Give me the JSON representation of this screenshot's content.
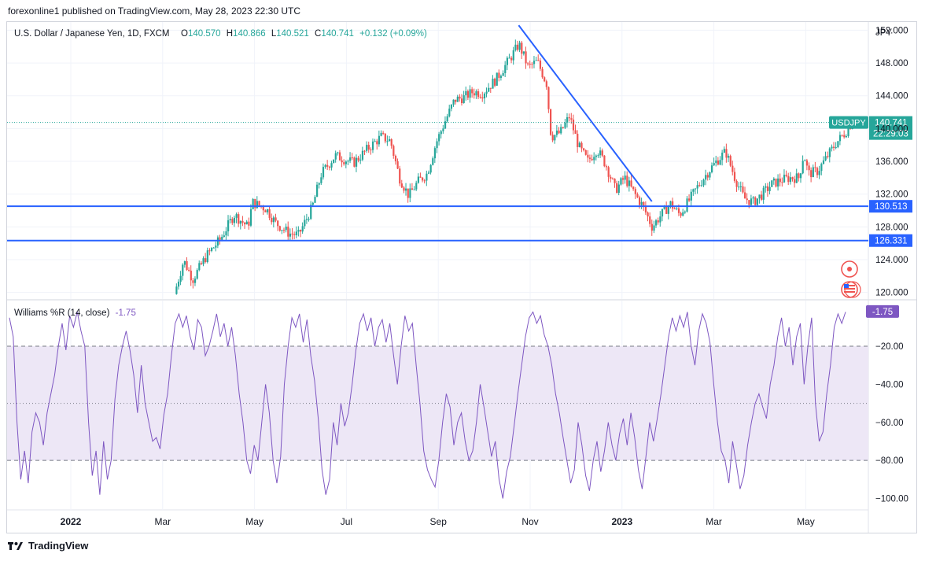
{
  "header": {
    "publisher": "forexonline1 published on TradingView.com, May 28, 2023 22:30 UTC"
  },
  "legend": {
    "symbol_name": "U.S. Dollar / Japanese Yen, 1D, FXCM",
    "o_label": "O",
    "o_value": "140.570",
    "h_label": "H",
    "h_value": "140.866",
    "l_label": "L",
    "l_value": "140.521",
    "c_label": "C",
    "c_value": "140.741",
    "change": "+0.132 (+0.09%)"
  },
  "indicator": {
    "name": "Williams %R (14, close)",
    "value": "-1.75"
  },
  "footer": {
    "brand": "TradingView"
  },
  "colors": {
    "up": "#26a69a",
    "down": "#ef5350",
    "line": "#2962ff",
    "wr": "#7e57c2",
    "wr_band": "#ede7f6"
  },
  "chart_data": [
    {
      "type": "candlestick",
      "title": "U.S. Dollar / Japanese Yen, 1D, FXCM",
      "currency": "JPY",
      "ylim": [
        119.2,
        153.0
      ],
      "yticks": [
        120.0,
        124.0,
        128.0,
        132.0,
        136.0,
        140.0,
        144.0,
        148.0,
        152.0
      ],
      "ytick_labels": [
        "120.000",
        "124.000",
        "128.000",
        "132.000",
        "136.000",
        "140.000",
        "144.000",
        "148.000",
        "152.000"
      ],
      "xticks": [
        {
          "month": 0,
          "label": "2022",
          "bold": true
        },
        {
          "month": 2,
          "label": "Mar",
          "bold": false
        },
        {
          "month": 4,
          "label": "May",
          "bold": false
        },
        {
          "month": 6,
          "label": "Jul",
          "bold": false
        },
        {
          "month": 8,
          "label": "Sep",
          "bold": false
        },
        {
          "month": 10,
          "label": "Nov",
          "bold": false
        },
        {
          "month": 12,
          "label": "2023",
          "bold": true
        },
        {
          "month": 14,
          "label": "Mar",
          "bold": false
        },
        {
          "month": 16,
          "label": "May",
          "bold": false
        }
      ],
      "price_path": [
        [
          2.3,
          119.8
        ],
        [
          2.5,
          123.9
        ],
        [
          2.7,
          121.6
        ],
        [
          3.0,
          124.5
        ],
        [
          3.3,
          126.5
        ],
        [
          3.6,
          129.5
        ],
        [
          3.9,
          128.0
        ],
        [
          4.0,
          131.0
        ],
        [
          4.3,
          130.2
        ],
        [
          4.5,
          128.5
        ],
        [
          4.8,
          127.2
        ],
        [
          5.0,
          127.0
        ],
        [
          5.3,
          130.4
        ],
        [
          5.5,
          134.5
        ],
        [
          5.8,
          136.7
        ],
        [
          6.2,
          135.8
        ],
        [
          6.5,
          137.5
        ],
        [
          6.8,
          139.0
        ],
        [
          7.0,
          138.5
        ],
        [
          7.2,
          134.0
        ],
        [
          7.4,
          131.8
        ],
        [
          7.6,
          133.5
        ],
        [
          7.8,
          134.5
        ],
        [
          8.0,
          138.3
        ],
        [
          8.2,
          141.0
        ],
        [
          8.4,
          143.5
        ],
        [
          8.6,
          143.8
        ],
        [
          8.8,
          144.5
        ],
        [
          9.0,
          144.3
        ],
        [
          9.3,
          146.0
        ],
        [
          9.6,
          148.5
        ],
        [
          9.8,
          150.3
        ],
        [
          10.0,
          147.5
        ],
        [
          10.2,
          148.2
        ],
        [
          10.4,
          145.5
        ],
        [
          10.5,
          139.0
        ],
        [
          10.7,
          139.5
        ],
        [
          10.9,
          141.5
        ],
        [
          11.1,
          137.8
        ],
        [
          11.3,
          136.0
        ],
        [
          11.5,
          137.5
        ],
        [
          11.7,
          135.5
        ],
        [
          11.9,
          132.5
        ],
        [
          12.1,
          134.0
        ],
        [
          12.3,
          132.2
        ],
        [
          12.5,
          130.5
        ],
        [
          12.7,
          128.0
        ],
        [
          12.9,
          129.5
        ],
        [
          13.1,
          130.8
        ],
        [
          13.3,
          129.5
        ],
        [
          13.5,
          131.2
        ],
        [
          13.7,
          133.0
        ],
        [
          13.9,
          134.6
        ],
        [
          14.1,
          136.0
        ],
        [
          14.3,
          137.2
        ],
        [
          14.5,
          134.0
        ],
        [
          14.7,
          131.5
        ],
        [
          14.9,
          131.0
        ],
        [
          15.1,
          132.0
        ],
        [
          15.3,
          133.2
        ],
        [
          15.5,
          133.7
        ],
        [
          15.7,
          134.0
        ],
        [
          15.9,
          134.0
        ],
        [
          16.0,
          137.0
        ],
        [
          16.1,
          134.5
        ],
        [
          16.3,
          134.8
        ],
        [
          16.5,
          136.5
        ],
        [
          16.7,
          138.2
        ],
        [
          16.9,
          139.5
        ],
        [
          17.05,
          140.74
        ]
      ],
      "current_price": {
        "value": 140.741,
        "label": "140.741",
        "symbol": "USDJPY",
        "countdown": "22:29:03"
      },
      "horizontal_lines": [
        {
          "value": 130.513,
          "label": "130.513"
        },
        {
          "value": 126.331,
          "label": "126.331"
        }
      ],
      "trend_line": {
        "from": {
          "month": 9.75,
          "price": 152.6
        },
        "to": {
          "month": 12.65,
          "price": 131.1
        }
      }
    },
    {
      "type": "line",
      "title": "Williams %R (14, close)",
      "ylim": [
        -106,
        4
      ],
      "yticks": [
        -20,
        -40,
        -60,
        -80,
        -100
      ],
      "ytick_labels": [
        "−20.00",
        "−40.00",
        "−60.00",
        "−80.00",
        "−100.00"
      ],
      "levels": [
        -20,
        -50,
        -80
      ],
      "current_value": -1.75,
      "series": [
        -5,
        -15,
        -60,
        -90,
        -75,
        -92,
        -65,
        -55,
        -60,
        -72,
        -55,
        -45,
        -35,
        -20,
        -8,
        -22,
        -4,
        -10,
        -2,
        -12,
        -20,
        -60,
        -88,
        -75,
        -98,
        -70,
        -90,
        -80,
        -48,
        -30,
        -20,
        -12,
        -22,
        -35,
        -55,
        -30,
        -50,
        -60,
        -70,
        -68,
        -74,
        -56,
        -45,
        -25,
        -8,
        -3,
        -10,
        -4,
        -15,
        -22,
        -6,
        -10,
        -25,
        -20,
        -12,
        -3,
        -15,
        -8,
        -20,
        -10,
        -25,
        -45,
        -60,
        -80,
        -87,
        -72,
        -80,
        -60,
        -40,
        -55,
        -80,
        -92,
        -78,
        -40,
        -20,
        -5,
        -10,
        -3,
        -18,
        -6,
        -25,
        -38,
        -58,
        -85,
        -98,
        -90,
        -60,
        -72,
        -50,
        -62,
        -55,
        -40,
        -22,
        -8,
        -3,
        -12,
        -5,
        -20,
        -10,
        -6,
        -18,
        -8,
        -25,
        -40,
        -20,
        -4,
        -12,
        -8,
        -30,
        -50,
        -75,
        -85,
        -90,
        -94,
        -80,
        -60,
        -45,
        -52,
        -72,
        -60,
        -55,
        -70,
        -80,
        -75,
        -60,
        -40,
        -52,
        -65,
        -78,
        -70,
        -90,
        -100,
        -86,
        -78,
        -62,
        -45,
        -30,
        -15,
        -5,
        -2,
        -8,
        -4,
        -14,
        -20,
        -30,
        -45,
        -55,
        -68,
        -80,
        -92,
        -85,
        -60,
        -72,
        -88,
        -96,
        -80,
        -70,
        -86,
        -75,
        -60,
        -72,
        -80,
        -66,
        -58,
        -72,
        -55,
        -68,
        -85,
        -95,
        -78,
        -60,
        -70,
        -58,
        -45,
        -30,
        -15,
        -5,
        -12,
        -4,
        -10,
        -2,
        -20,
        -30,
        -12,
        -3,
        -8,
        -18,
        -40,
        -60,
        -75,
        -80,
        -92,
        -70,
        -82,
        -95,
        -88,
        -72,
        -60,
        -50,
        -45,
        -52,
        -58,
        -40,
        -30,
        -15,
        -5,
        -20,
        -10,
        -30,
        -15,
        -8,
        -40,
        -20,
        -5,
        -50,
        -70,
        -65,
        -45,
        -30,
        -10,
        -3,
        -8,
        -2
      ]
    }
  ]
}
